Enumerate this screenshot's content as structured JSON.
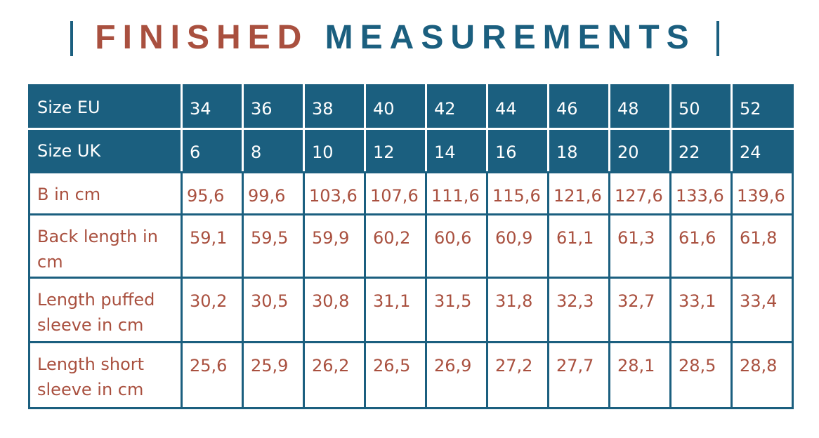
{
  "title": {
    "part1": "FINISHED",
    "part2": "MEASUREMENTS"
  },
  "colors": {
    "rust": "#a9503f",
    "teal": "#1b5f7f"
  },
  "table": {
    "header_rows": [
      {
        "label": "Size EU",
        "values": [
          "34",
          "36",
          "38",
          "40",
          "42",
          "44",
          "46",
          "48",
          "50",
          "52"
        ]
      },
      {
        "label": "Size UK",
        "values": [
          "6",
          "8",
          "10",
          "12",
          "14",
          "16",
          "18",
          "20",
          "22",
          "24"
        ]
      }
    ],
    "rows": [
      {
        "label": "B in cm",
        "values": [
          "95,6",
          "99,6",
          "103,6",
          "107,6",
          "111,6",
          "115,6",
          "121,6",
          "127,6",
          "133,6",
          "139,6"
        ]
      },
      {
        "label": "Back length in cm",
        "values": [
          "59,1",
          "59,5",
          "59,9",
          "60,2",
          "60,6",
          "60,9",
          "61,1",
          "61,3",
          "61,6",
          "61,8"
        ]
      },
      {
        "label": "Length puffed sleeve in cm",
        "values": [
          "30,2",
          "30,5",
          "30,8",
          "31,1",
          "31,5",
          "31,8",
          "32,3",
          "32,7",
          "33,1",
          "33,4"
        ]
      },
      {
        "label": "Length short sleeve in cm",
        "values": [
          "25,6",
          "25,9",
          "26,2",
          "26,5",
          "26,9",
          "27,2",
          "27,7",
          "28,1",
          "28,5",
          "28,8"
        ]
      }
    ]
  }
}
